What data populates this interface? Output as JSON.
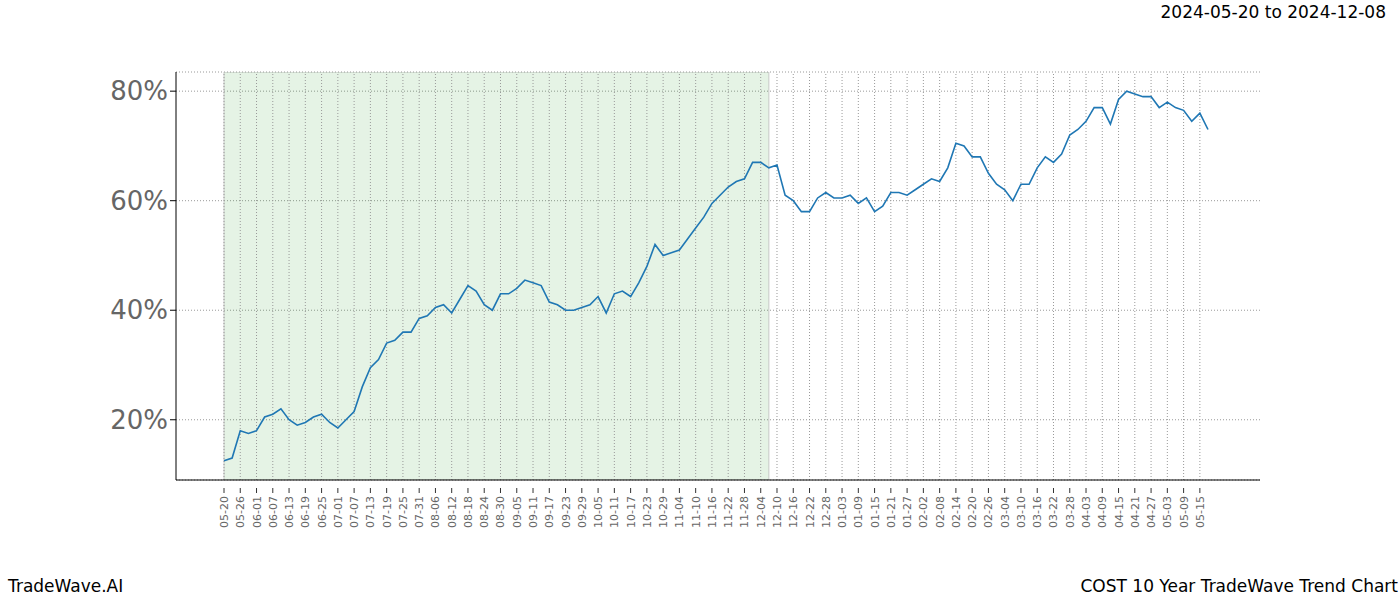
{
  "chart_data": {
    "type": "line",
    "title": "2024-05-20 to 2024-12-08",
    "footer_left": "TradeWave.AI",
    "footer_right": "COST 10 Year TradeWave Trend Chart",
    "categories": [
      "05-20",
      null,
      "05-26",
      null,
      "06-01",
      null,
      "06-07",
      null,
      "06-13",
      null,
      "06-19",
      null,
      "06-25",
      null,
      "07-01",
      null,
      "07-07",
      null,
      "07-13",
      null,
      "07-19",
      null,
      "07-25",
      null,
      "07-31",
      null,
      "08-06",
      null,
      "08-12",
      null,
      "08-18",
      null,
      "08-24",
      null,
      "08-30",
      null,
      "09-05",
      null,
      "09-11",
      null,
      "09-17",
      null,
      "09-23",
      null,
      "09-29",
      null,
      "10-05",
      null,
      "10-11",
      null,
      "10-17",
      null,
      "10-23",
      null,
      "10-29",
      null,
      "11-04",
      null,
      "11-10",
      null,
      "11-16",
      null,
      "11-22",
      null,
      "11-28",
      null,
      "12-04",
      null,
      "12-10",
      null,
      "12-16",
      null,
      "12-22",
      null,
      "12-28",
      null,
      "01-03",
      null,
      "01-09",
      null,
      "01-15",
      null,
      "01-21",
      null,
      "01-27",
      null,
      "02-02",
      null,
      "02-08",
      null,
      "02-14",
      null,
      "02-20",
      null,
      "02-26",
      null,
      "03-04",
      null,
      "03-10",
      null,
      "03-16",
      null,
      "03-22",
      null,
      "03-28",
      null,
      "04-03",
      null,
      "04-09",
      null,
      "04-15",
      null,
      "04-21",
      null,
      "04-27",
      null,
      "05-03",
      null,
      "05-09",
      null,
      "05-15",
      null
    ],
    "values": [
      12.5,
      13,
      18,
      17.5,
      18,
      20.5,
      21,
      22,
      20,
      19,
      19.5,
      20.5,
      21,
      19.5,
      18.5,
      20,
      21.5,
      26,
      29.5,
      31,
      34,
      34.5,
      36,
      36,
      38.5,
      39,
      40.5,
      41,
      39.5,
      42,
      44.5,
      43.5,
      41,
      40,
      43,
      43,
      44,
      45.5,
      45,
      44.5,
      41.5,
      41,
      40,
      40,
      40.5,
      41,
      42.5,
      39.5,
      43,
      43.5,
      42.5,
      45,
      48,
      52,
      50,
      50.5,
      51,
      53,
      55,
      57,
      59.5,
      61,
      62.5,
      63.5,
      64,
      67,
      67,
      66,
      66.5,
      61,
      60,
      58,
      58,
      60.5,
      61.5,
      60.5,
      60.5,
      61,
      59.5,
      60.5,
      58,
      59,
      61.5,
      61.5,
      61,
      62,
      63,
      64,
      63.5,
      66,
      70.5,
      70,
      68,
      68,
      65,
      63,
      62,
      60,
      63,
      63,
      66,
      68,
      67,
      68.5,
      72,
      73,
      74.5,
      77,
      77,
      74,
      78.5,
      80,
      79.5,
      79,
      79,
      77,
      78,
      77,
      76.5,
      74.5,
      76,
      73
    ],
    "color": "#1f77b4",
    "ylim": [
      9,
      83.5
    ],
    "yticks": [
      {
        "value": 20,
        "label": "20%"
      },
      {
        "value": 40,
        "label": "40%"
      },
      {
        "value": 60,
        "label": "60%"
      },
      {
        "value": 80,
        "label": "80%"
      }
    ],
    "grid": true,
    "highlight": {
      "from": 0,
      "to": 67
    }
  }
}
